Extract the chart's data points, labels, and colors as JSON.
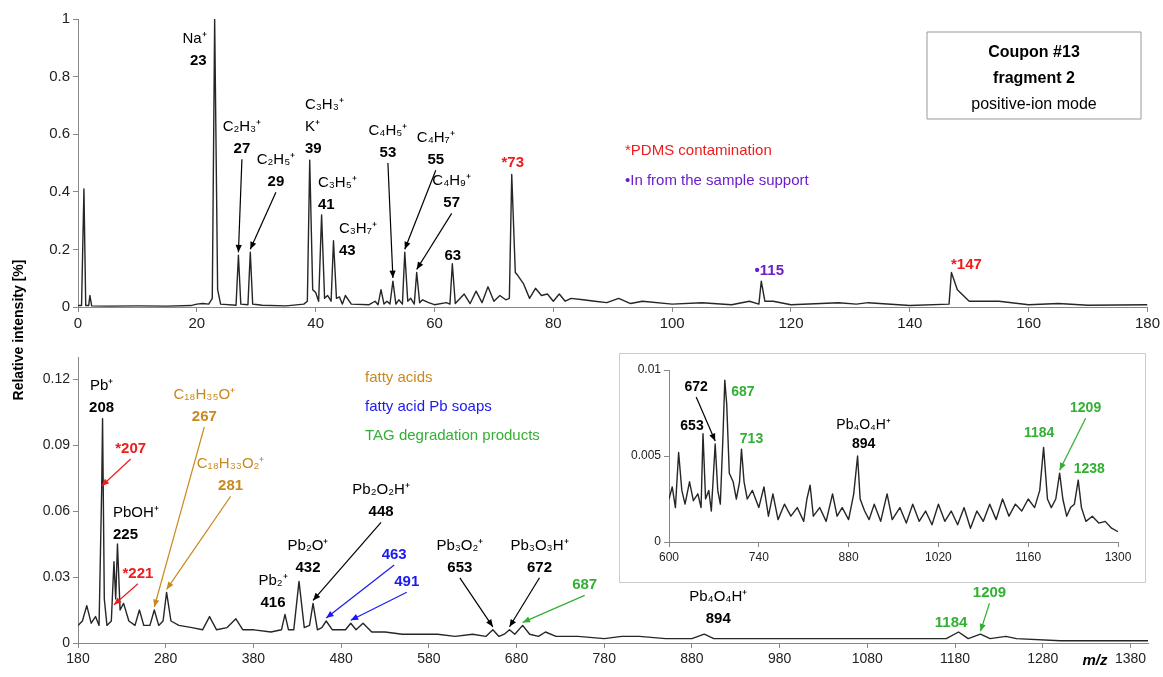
{
  "chart_data": [
    {
      "type": "line",
      "title": "Coupon #13\nfragment 2",
      "subtitle": "positive-ion mode",
      "ylabel": "Relative intensity [%]",
      "color": "#262626",
      "marker": "none",
      "xlim": [
        0,
        180
      ],
      "ylim": [
        0,
        1
      ],
      "xticks": [
        0,
        20,
        40,
        60,
        80,
        100,
        120,
        140,
        160,
        180
      ],
      "yticks": [
        0,
        0.2,
        0.4,
        0.6,
        0.8,
        1
      ],
      "x": [
        0,
        0.6,
        1,
        1.3,
        1.8,
        2,
        2.3,
        5,
        10,
        15,
        19,
        20,
        21,
        22,
        22.6,
        23,
        23.5,
        24,
        26.6,
        27,
        27.4,
        28.6,
        29,
        29.4,
        31,
        35,
        38,
        38.6,
        39,
        39.5,
        40,
        40.5,
        41,
        41.5,
        42,
        42.6,
        43,
        43.5,
        44,
        44.5,
        45,
        46,
        49,
        50,
        50.5,
        51,
        51.5,
        52,
        52.5,
        53,
        53.5,
        54,
        54.6,
        55,
        55.5,
        56,
        56.6,
        57,
        57.5,
        58,
        59,
        60,
        62,
        62.6,
        63,
        63.5,
        65,
        66,
        67,
        68,
        69,
        70,
        71,
        72,
        72.6,
        73,
        73.6,
        74,
        75,
        76,
        77,
        78,
        79,
        80,
        81,
        82,
        83,
        85,
        87,
        89,
        91,
        93,
        95,
        100,
        105,
        110,
        113,
        114.6,
        115,
        115.6,
        117,
        120,
        128,
        131,
        133,
        140,
        146.6,
        147,
        148,
        149,
        150,
        155,
        160,
        165,
        170,
        180
      ],
      "values": [
        0.005,
        0.005,
        0.41,
        0.005,
        0.005,
        0.04,
        0.004,
        0.003,
        0.004,
        0.003,
        0.005,
        0.01,
        0.012,
        0.01,
        0.03,
        1,
        0.06,
        0.01,
        0.006,
        0.18,
        0.01,
        0.008,
        0.19,
        0.01,
        0.006,
        0.004,
        0.01,
        0.02,
        0.51,
        0.06,
        0.05,
        0.02,
        0.32,
        0.03,
        0.04,
        0.02,
        0.23,
        0.03,
        0.035,
        0.01,
        0.04,
        0.01,
        0.008,
        0.02,
        0.008,
        0.06,
        0.01,
        0.02,
        0.01,
        0.09,
        0.01,
        0.025,
        0.01,
        0.19,
        0.02,
        0.03,
        0.01,
        0.12,
        0.015,
        0.025,
        0.015,
        0.008,
        0.015,
        0.01,
        0.15,
        0.012,
        0.045,
        0.012,
        0.055,
        0.015,
        0.07,
        0.02,
        0.04,
        0.025,
        0.03,
        0.46,
        0.12,
        0.11,
        0.08,
        0.03,
        0.065,
        0.04,
        0.045,
        0.02,
        0.045,
        0.02,
        0.03,
        0.025,
        0.02,
        0.015,
        0.03,
        0.012,
        0.02,
        0.01,
        0.015,
        0.008,
        0.02,
        0.01,
        0.09,
        0.02,
        0.02,
        0.008,
        0.015,
        0.01,
        0.015,
        0.005,
        0.01,
        0.12,
        0.06,
        0.04,
        0.02,
        0.02,
        0.008,
        0.012,
        0.006,
        0.008
      ],
      "annotations": [
        {
          "text": "Na⁺\n23",
          "x": 23,
          "y": 1
        },
        {
          "text": "C₂H₃⁺\n27",
          "x": 27,
          "y": 0.18
        },
        {
          "text": "C₂H₅⁺\n29",
          "x": 29,
          "y": 0.19
        },
        {
          "text": "C₃H₃⁺\nK⁺\n39",
          "x": 39,
          "y": 0.51
        },
        {
          "text": "C₃H₅⁺\n41",
          "x": 41,
          "y": 0.32
        },
        {
          "text": "C₃H₇⁺\n43",
          "x": 43,
          "y": 0.23
        },
        {
          "text": "C₄H₅⁺\n53",
          "x": 53,
          "y": 0.09
        },
        {
          "text": "C₄H₇⁺\n55",
          "x": 55,
          "y": 0.19
        },
        {
          "text": "C₄H₉⁺\n57",
          "x": 57,
          "y": 0.12
        },
        {
          "text": "63",
          "x": 63,
          "y": 0.15
        },
        {
          "text": "*73",
          "x": 73,
          "y": 0.46
        },
        {
          "text": "•115",
          "x": 115,
          "y": 0.09
        },
        {
          "text": "*147",
          "x": 147,
          "y": 0.12
        },
        "*PDMS contamination",
        "•In from the sample support"
      ]
    },
    {
      "type": "line",
      "xlabel": "m/z",
      "color": "#262626",
      "marker": "none",
      "xlim": [
        180,
        1400
      ],
      "ylim": [
        0,
        0.13
      ],
      "xticks": [
        180,
        280,
        380,
        480,
        580,
        680,
        780,
        880,
        980,
        1080,
        1180,
        1280,
        1380
      ],
      "yticks": [
        0,
        0.03,
        0.06,
        0.09,
        0.12
      ],
      "x": [
        180,
        185,
        190,
        195,
        200,
        204,
        207,
        208,
        210,
        213,
        218,
        221,
        223,
        225,
        228,
        232,
        238,
        245,
        250,
        255,
        262,
        267,
        272,
        277,
        281,
        286,
        295,
        310,
        322,
        330,
        338,
        350,
        360,
        368,
        380,
        400,
        412,
        416,
        420,
        426,
        432,
        438,
        444,
        448,
        453,
        458,
        463,
        470,
        480,
        485,
        491,
        497,
        505,
        515,
        530,
        550,
        570,
        590,
        610,
        630,
        645,
        653,
        660,
        666,
        672,
        678,
        687,
        695,
        705,
        713,
        725,
        750,
        780,
        800,
        820,
        850,
        880,
        894,
        905,
        950,
        1000,
        1050,
        1100,
        1150,
        1170,
        1184,
        1195,
        1209,
        1220,
        1238,
        1250,
        1300,
        1350,
        1400
      ],
      "values": [
        0.008,
        0.01,
        0.017,
        0.009,
        0.012,
        0.008,
        0.07,
        0.102,
        0.02,
        0.008,
        0.01,
        0.037,
        0.02,
        0.045,
        0.015,
        0.018,
        0.01,
        0.008,
        0.015,
        0.008,
        0.008,
        0.015,
        0.008,
        0.01,
        0.023,
        0.01,
        0.008,
        0.007,
        0.006,
        0.012,
        0.006,
        0.007,
        0.011,
        0.006,
        0.006,
        0.005,
        0.006,
        0.013,
        0.006,
        0.006,
        0.028,
        0.007,
        0.008,
        0.018,
        0.006,
        0.007,
        0.01,
        0.006,
        0.006,
        0.006,
        0.009,
        0.006,
        0.009,
        0.005,
        0.005,
        0.004,
        0.004,
        0.004,
        0.003,
        0.004,
        0.003,
        0.006,
        0.003,
        0.004,
        0.006,
        0.004,
        0.008,
        0.004,
        0.003,
        0.005,
        0.003,
        0.003,
        0.002,
        0.003,
        0.003,
        0.002,
        0.002,
        0.004,
        0.002,
        0.002,
        0.002,
        0.002,
        0.002,
        0.002,
        0.002,
        0.005,
        0.002,
        0.004,
        0.002,
        0.003,
        0.002,
        0.001,
        0.001,
        0.001
      ],
      "annotations": [
        {
          "text": "Pb⁺\n208",
          "x": 208,
          "y": 0.102
        },
        {
          "text": "*207",
          "x": 207,
          "y": 0.07
        },
        {
          "text": "PbOH⁺\n225",
          "x": 225,
          "y": 0.045
        },
        {
          "text": "*221",
          "x": 221,
          "y": 0.016
        },
        {
          "text": "C₁₈H₃₅O⁺\n267",
          "x": 267,
          "y": 0.015
        },
        {
          "text": "C₁₈H₃₃O₂⁺\n281",
          "x": 281,
          "y": 0.023
        },
        {
          "text": "Pb₂⁺\n416",
          "x": 416,
          "y": 0.013
        },
        {
          "text": "Pb₂O⁺\n432",
          "x": 432,
          "y": 0.028
        },
        {
          "text": "Pb₂O₂H⁺\n448",
          "x": 448,
          "y": 0.018
        },
        {
          "text": "463",
          "x": 463,
          "y": 0.01
        },
        {
          "text": "491",
          "x": 491,
          "y": 0.009
        },
        {
          "text": "Pb₃O₂⁺\n653",
          "x": 653,
          "y": 0.006
        },
        {
          "text": "Pb₃O₃H⁺\n672",
          "x": 672,
          "y": 0.006
        },
        {
          "text": "687",
          "x": 687,
          "y": 0.008
        },
        {
          "text": "Pb₄O₄H⁺\n894",
          "x": 894,
          "y": 0.004
        },
        {
          "text": "1184",
          "x": 1184,
          "y": 0.005
        },
        {
          "text": "1209",
          "x": 1209,
          "y": 0.004
        },
        "fatty acids",
        "fatty acid Pb soaps",
        "TAG degradation products"
      ]
    },
    {
      "type": "line",
      "color": "#262626",
      "marker": "none",
      "xlim": [
        600,
        1300
      ],
      "ylim": [
        0,
        0.01
      ],
      "xticks": [
        600,
        740,
        880,
        1020,
        1160,
        1300
      ],
      "yticks": [
        0,
        0.005,
        0.01
      ],
      "x": [
        600,
        605,
        610,
        615,
        620,
        625,
        632,
        638,
        645,
        650,
        653,
        657,
        662,
        666,
        672,
        676,
        680,
        684,
        687,
        690,
        694,
        700,
        705,
        710,
        713,
        717,
        722,
        730,
        740,
        748,
        755,
        762,
        770,
        780,
        790,
        800,
        810,
        815,
        820,
        825,
        835,
        845,
        855,
        862,
        870,
        880,
        888,
        894,
        898,
        905,
        912,
        920,
        930,
        940,
        948,
        960,
        970,
        980,
        990,
        1000,
        1010,
        1020,
        1030,
        1040,
        1050,
        1060,
        1070,
        1080,
        1090,
        1100,
        1110,
        1120,
        1130,
        1140,
        1150,
        1160,
        1170,
        1178,
        1184,
        1190,
        1196,
        1203,
        1209,
        1214,
        1220,
        1226,
        1232,
        1238,
        1243,
        1250,
        1260,
        1270,
        1280,
        1290,
        1300
      ],
      "values": [
        0.0025,
        0.0032,
        0.002,
        0.0052,
        0.003,
        0.0022,
        0.0035,
        0.0024,
        0.0028,
        0.002,
        0.0063,
        0.0025,
        0.003,
        0.0018,
        0.0057,
        0.003,
        0.0022,
        0.006,
        0.0094,
        0.008,
        0.004,
        0.0035,
        0.0025,
        0.0035,
        0.0054,
        0.0035,
        0.0025,
        0.003,
        0.002,
        0.0032,
        0.0015,
        0.0028,
        0.0013,
        0.0022,
        0.0015,
        0.002,
        0.0012,
        0.0025,
        0.0033,
        0.0015,
        0.002,
        0.0012,
        0.0028,
        0.0015,
        0.002,
        0.0013,
        0.0028,
        0.005,
        0.0025,
        0.0018,
        0.0013,
        0.0022,
        0.0012,
        0.0028,
        0.0013,
        0.002,
        0.0011,
        0.0022,
        0.0012,
        0.0018,
        0.001,
        0.0022,
        0.0012,
        0.0018,
        0.001,
        0.002,
        0.0008,
        0.0018,
        0.0012,
        0.0022,
        0.0013,
        0.0025,
        0.0015,
        0.0022,
        0.0018,
        0.0025,
        0.002,
        0.003,
        0.0055,
        0.0025,
        0.002,
        0.0025,
        0.004,
        0.0025,
        0.0015,
        0.002,
        0.0022,
        0.0036,
        0.002,
        0.0012,
        0.0015,
        0.0011,
        0.0012,
        0.0008,
        0.0006
      ],
      "annotations": [
        {
          "text": "653",
          "x": 653,
          "y": 0.0063
        },
        {
          "text": "672",
          "x": 672,
          "y": 0.0057
        },
        {
          "text": "687",
          "x": 687,
          "y": 0.0094
        },
        {
          "text": "713",
          "x": 713,
          "y": 0.0054
        },
        {
          "text": "Pb₄O₄H⁺\n894",
          "x": 894,
          "y": 0.005
        },
        {
          "text": "1184",
          "x": 1184,
          "y": 0.0055
        },
        {
          "text": "1209",
          "x": 1209,
          "y": 0.004
        },
        {
          "text": "1238",
          "x": 1238,
          "y": 0.0036
        }
      ]
    }
  ]
}
